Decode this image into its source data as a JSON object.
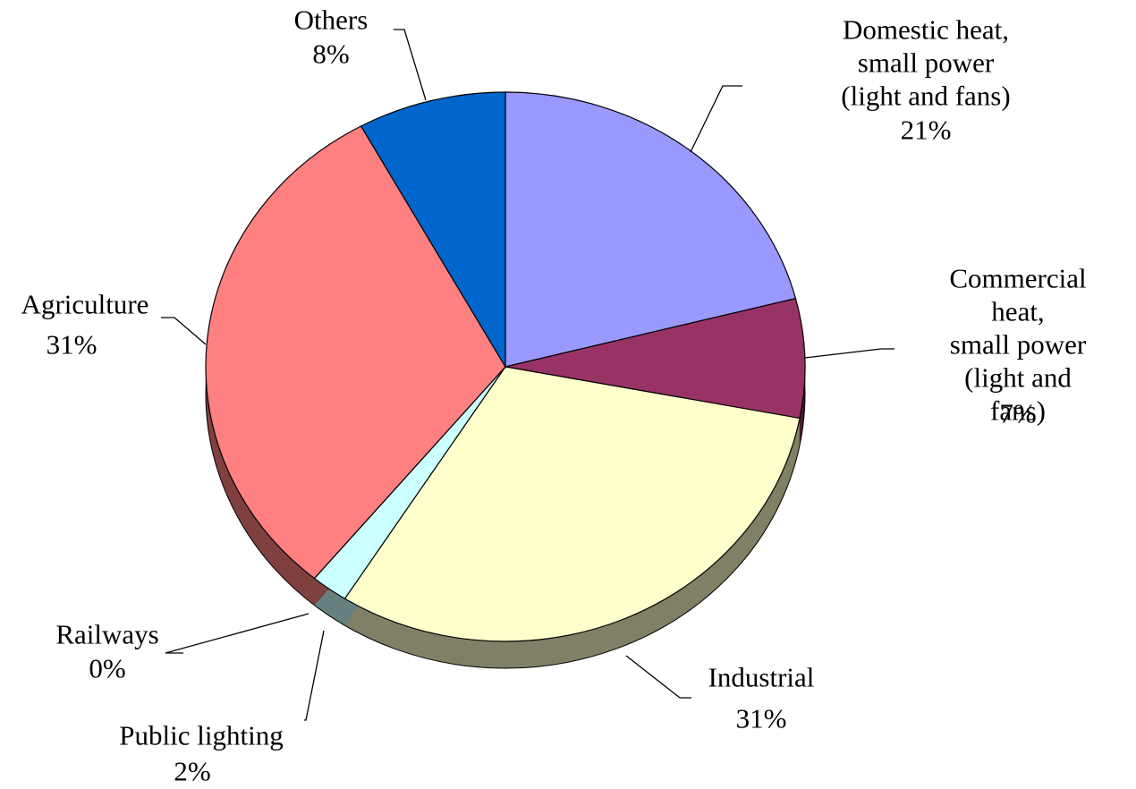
{
  "chart_data": {
    "type": "pie",
    "categories": [
      "Domestic heat, small power\n(light and fans)",
      "Commercial heat,\nsmall power\n(light and fans)",
      "Industrial",
      "Public lighting",
      "Railways",
      "Agriculture",
      "Others"
    ],
    "values": [
      21,
      7,
      31,
      2,
      0,
      31,
      8
    ],
    "value_labels": [
      "21%",
      "7%",
      "31%",
      "2%",
      "0%",
      "31%",
      "8%"
    ],
    "colors": [
      "#9999ff",
      "#993366",
      "#ffffcc",
      "#ccffff",
      "#660066",
      "#ff8080",
      "#0066cc"
    ]
  }
}
